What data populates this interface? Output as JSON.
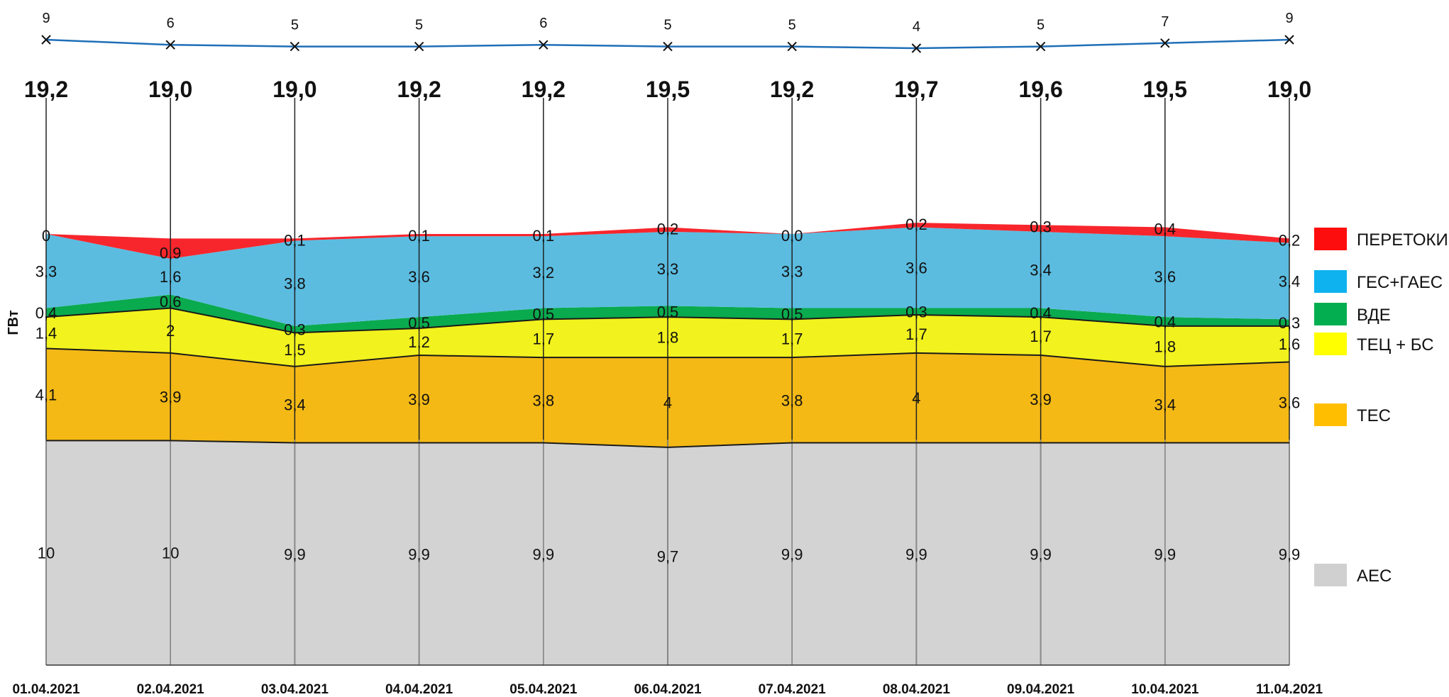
{
  "chart_data": {
    "type": "area",
    "stacked": true,
    "categories": [
      "01.04.2021",
      "02.04.2021",
      "03.04.2021",
      "04.04.2021",
      "05.04.2021",
      "06.04.2021",
      "07.04.2021",
      "08.04.2021",
      "09.04.2021",
      "10.04.2021",
      "11.04.2021"
    ],
    "ylabel": "ГВт",
    "totals": [
      "19,2",
      "19,0",
      "19,0",
      "19,2",
      "19,2",
      "19,5",
      "19,2",
      "19,7",
      "19,6",
      "19,5",
      "19,0"
    ],
    "top_line": {
      "values": [
        9,
        6,
        5,
        5,
        6,
        5,
        5,
        4,
        5,
        7,
        9
      ],
      "labels": [
        "9",
        "6",
        "5",
        "5",
        "6",
        "5",
        "5",
        "4",
        "5",
        "7",
        "9"
      ],
      "color": "#1f6fb8"
    },
    "series": [
      {
        "name": "АЕС",
        "color": "#d3d3d3",
        "values": [
          10,
          10,
          9.9,
          9.9,
          9.9,
          9.7,
          9.9,
          9.9,
          9.9,
          9.9,
          9.9
        ],
        "labels": [
          "10",
          "10",
          "9,9",
          "9,9",
          "9,9",
          "9,7",
          "9,9",
          "9,9",
          "9,9",
          "9,9",
          "9,9"
        ]
      },
      {
        "name": "ТЕС",
        "color": "#f4b915",
        "values": [
          4.1,
          3.9,
          3.4,
          3.9,
          3.8,
          4.0,
          3.8,
          4.0,
          3.9,
          3.4,
          3.6
        ],
        "labels": [
          "4,1",
          "3,9",
          "3,4",
          "3,9",
          "3,8",
          "4",
          "3,8",
          "4",
          "3,9",
          "3,4",
          "3,6"
        ]
      },
      {
        "name": "ТЕЦ + БС",
        "color": "#f2f21e",
        "values": [
          1.4,
          2.0,
          1.5,
          1.2,
          1.7,
          1.8,
          1.7,
          1.7,
          1.7,
          1.8,
          1.6
        ],
        "labels": [
          "1,4",
          "2",
          "1,5",
          "1,2",
          "1,7",
          "1,8",
          "1,7",
          "1,7",
          "1,7",
          "1,8",
          "1,6"
        ]
      },
      {
        "name": "ВДЕ",
        "color": "#0aaa4e",
        "values": [
          0.4,
          0.6,
          0.3,
          0.5,
          0.5,
          0.5,
          0.5,
          0.3,
          0.4,
          0.4,
          0.3
        ],
        "labels": [
          "0,4",
          "0,6",
          "0,3",
          "0,5",
          "0,5",
          "0,5",
          "0,5",
          "0,3",
          "0,4",
          "0,4",
          "0,3"
        ]
      },
      {
        "name": "ГЕС+ГАЕС",
        "color": "#5bbce0",
        "values": [
          3.3,
          1.6,
          3.8,
          3.6,
          3.2,
          3.3,
          3.3,
          3.6,
          3.4,
          3.6,
          3.4
        ],
        "labels": [
          "3,3",
          "1,6",
          "3,8",
          "3,6",
          "3,2",
          "3,3",
          "3,3",
          "3,6",
          "3,4",
          "3,6",
          "3,4"
        ]
      },
      {
        "name": "ПЕРЕТОКИ",
        "color": "#f7262c",
        "values": [
          0,
          0.9,
          0.1,
          0.1,
          0.1,
          0.2,
          0.0,
          0.2,
          0.3,
          0.4,
          0.2
        ],
        "labels": [
          "0",
          "0,9",
          "0,1",
          "0,1",
          "0,1",
          "0,2",
          "0,0",
          "0,2",
          "0,3",
          "0,4",
          "0,2"
        ]
      }
    ],
    "legend": [
      {
        "name": "ПЕРЕТОКИ",
        "color": "#fd0d0d"
      },
      {
        "name": "ГЕС+ГАЕС",
        "color": "#0db2ee"
      },
      {
        "name": "ВДЕ",
        "color": "#02ae50"
      },
      {
        "name": "ТЕЦ + БС",
        "color": "#ffff00"
      },
      {
        "name": "ТЕС",
        "color": "#ffbf00"
      },
      {
        "name": "АЕС",
        "color": "#d0d0d0"
      }
    ],
    "legend_position": "right"
  }
}
